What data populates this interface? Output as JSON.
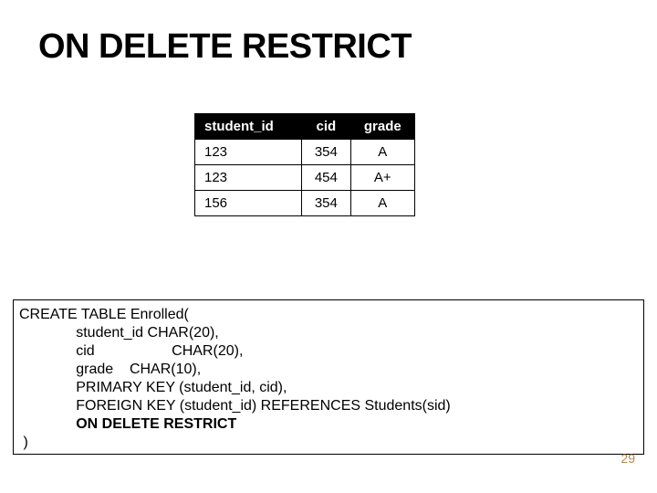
{
  "title": "ON DELETE RESTRICT",
  "table": {
    "columns": [
      "student_id",
      "cid",
      "grade"
    ],
    "rows": [
      [
        "123",
        "354",
        "A"
      ],
      [
        "123",
        "454",
        "A+"
      ],
      [
        "156",
        "354",
        "A"
      ]
    ],
    "header_bg": "#000000",
    "header_fg": "#ffffff",
    "border_color": "#000000",
    "cell_bg": "#ffffff"
  },
  "code": {
    "line1": "CREATE TABLE Enrolled(",
    "line2": "              student_id CHAR(20),",
    "line3": "              cid                   CHAR(20),",
    "line4": "              grade    CHAR(10),",
    "line5": "              PRIMARY KEY (student_id, cid),",
    "line6": "              FOREIGN KEY (student_id) REFERENCES Students(sid)",
    "line7": "              ON DELETE RESTRICT",
    "line8": " )"
  },
  "page_number": "29",
  "colors": {
    "title": "#000000",
    "page_num": "#b9874b",
    "background": "#ffffff"
  }
}
